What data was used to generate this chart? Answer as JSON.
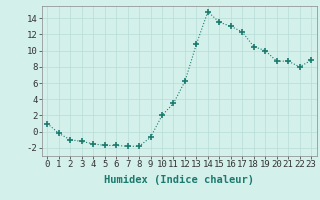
{
  "x": [
    0,
    1,
    2,
    3,
    4,
    5,
    6,
    7,
    8,
    9,
    10,
    11,
    12,
    13,
    14,
    15,
    16,
    17,
    18,
    19,
    20,
    21,
    22,
    23
  ],
  "y": [
    1,
    -0.2,
    -1.0,
    -1.2,
    -1.5,
    -1.7,
    -1.7,
    -1.8,
    -1.8,
    -0.7,
    2.0,
    3.5,
    6.2,
    10.8,
    14.8,
    13.5,
    13.0,
    12.3,
    10.5,
    10.0,
    8.7,
    8.7,
    8.0,
    8.8
  ],
  "line_color": "#1a7a6e",
  "marker_color": "#1a7a6e",
  "bg_color": "#d4f0eb",
  "grid_color": "#b8ddd8",
  "xlabel": "Humidex (Indice chaleur)",
  "xlim": [
    -0.5,
    23.5
  ],
  "ylim": [
    -3,
    15.5
  ],
  "yticks": [
    -2,
    0,
    2,
    4,
    6,
    8,
    10,
    12,
    14
  ],
  "xticks": [
    0,
    1,
    2,
    3,
    4,
    5,
    6,
    7,
    8,
    9,
    10,
    11,
    12,
    13,
    14,
    15,
    16,
    17,
    18,
    19,
    20,
    21,
    22,
    23
  ],
  "tick_fontsize": 6.5,
  "xlabel_fontsize": 7.5
}
